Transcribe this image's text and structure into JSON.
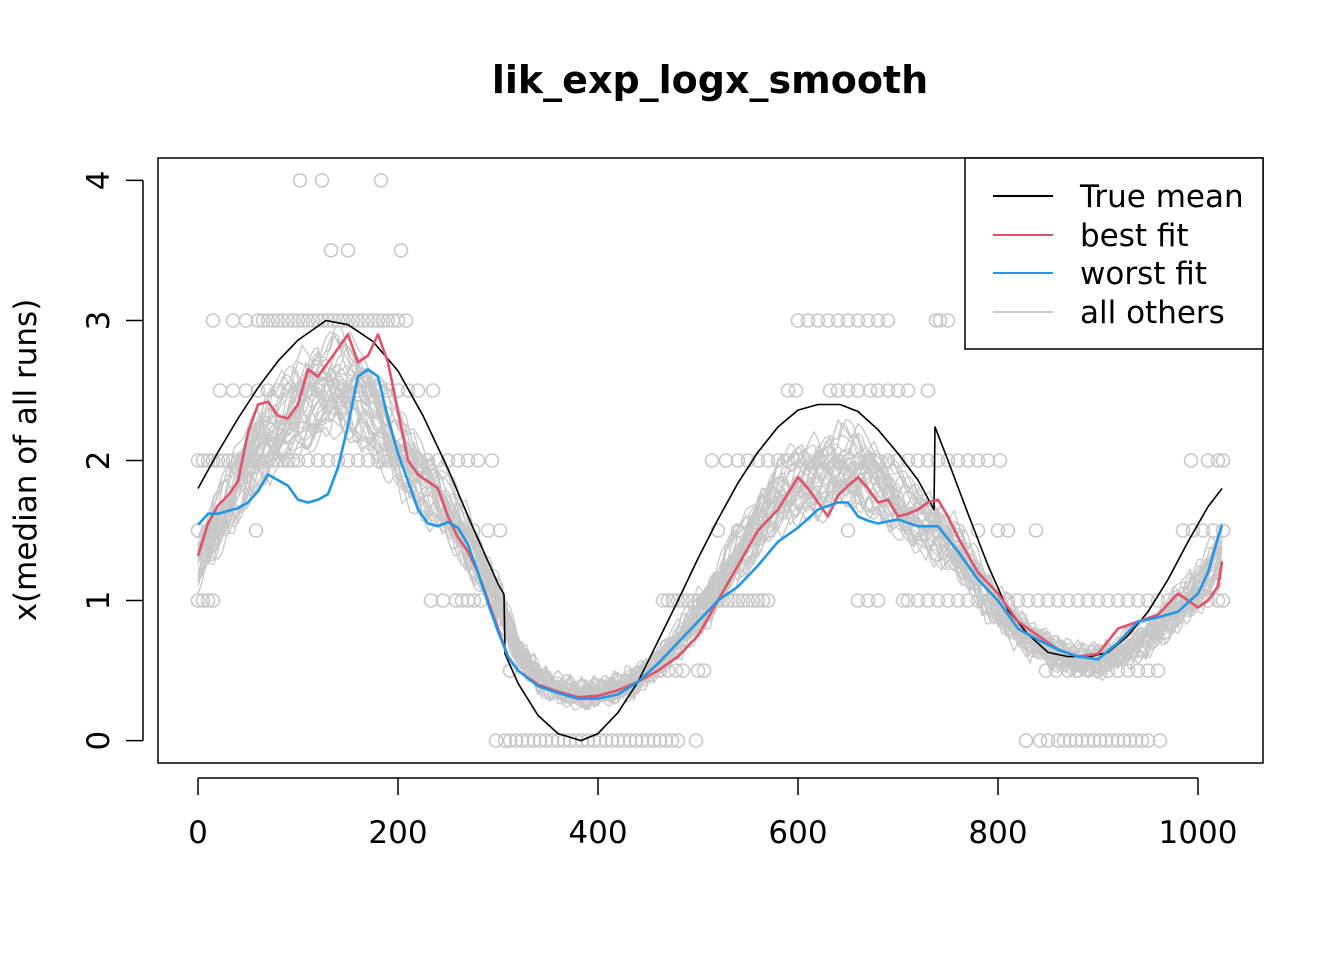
{
  "chart_data": {
    "type": "line",
    "title": "lik_exp_logx_smooth",
    "xlabel": "",
    "ylabel": "x(median of all runs)",
    "xlim": [
      -40,
      1065
    ],
    "ylim": [
      -0.16,
      4.16
    ],
    "x_ticks": [
      "0",
      "200",
      "400",
      "600",
      "800",
      "1000"
    ],
    "y_ticks": [
      "0",
      "1",
      "2",
      "3",
      "4"
    ],
    "legend_position": "top-right",
    "colors": {
      "true_mean": "#000000",
      "best_fit": "#DF536B",
      "worst_fit": "#2297E6",
      "others": "#C8C8C8",
      "points": "#C8C8C8"
    },
    "legend": [
      {
        "label": "True mean",
        "color": "#000000"
      },
      {
        "label": "best fit",
        "color": "#DF536B"
      },
      {
        "label": "worst fit",
        "color": "#2297E6"
      },
      {
        "label": "all others",
        "color": "#C8C8C8"
      }
    ],
    "series": [
      {
        "name": "True mean",
        "color": "#000000",
        "x": [
          0,
          20,
          40,
          60,
          80,
          100,
          128,
          150,
          175,
          200,
          225,
          250,
          275,
          300,
          306,
          307,
          320,
          340,
          360,
          383,
          400,
          420,
          440,
          460,
          480,
          500,
          520,
          540,
          560,
          580,
          600,
          620,
          642,
          660,
          680,
          700,
          720,
          736,
          737,
          750,
          770,
          790,
          810,
          830,
          850,
          870,
          892,
          910,
          930,
          950,
          970,
          990,
          1010,
          1024
        ],
        "y": [
          1.8,
          2.06,
          2.3,
          2.52,
          2.71,
          2.86,
          3.0,
          2.97,
          2.85,
          2.64,
          2.32,
          1.94,
          1.52,
          1.12,
          1.04,
          0.62,
          0.41,
          0.18,
          0.05,
          0.0,
          0.05,
          0.2,
          0.42,
          0.71,
          1.0,
          1.3,
          1.58,
          1.84,
          2.06,
          2.24,
          2.36,
          2.4,
          2.4,
          2.35,
          2.22,
          2.05,
          1.86,
          1.65,
          2.24,
          2.0,
          1.62,
          1.25,
          0.93,
          0.76,
          0.63,
          0.6,
          0.6,
          0.63,
          0.75,
          0.92,
          1.15,
          1.42,
          1.67,
          1.8
        ]
      },
      {
        "name": "best fit",
        "color": "#DF536B",
        "x": [
          0,
          10,
          20,
          30,
          40,
          50,
          60,
          70,
          80,
          90,
          100,
          110,
          120,
          130,
          140,
          150,
          160,
          170,
          180,
          190,
          200,
          210,
          220,
          230,
          240,
          250,
          260,
          270,
          280,
          290,
          300,
          310,
          320,
          340,
          360,
          380,
          400,
          420,
          440,
          460,
          480,
          500,
          520,
          540,
          560,
          580,
          600,
          610,
          620,
          630,
          640,
          650,
          660,
          670,
          680,
          690,
          700,
          710,
          720,
          730,
          740,
          750,
          760,
          780,
          800,
          820,
          840,
          860,
          880,
          900,
          920,
          940,
          960,
          980,
          1000,
          1010,
          1020,
          1024
        ],
        "y": [
          1.32,
          1.55,
          1.68,
          1.75,
          1.85,
          2.2,
          2.4,
          2.42,
          2.32,
          2.3,
          2.4,
          2.65,
          2.6,
          2.7,
          2.8,
          2.9,
          2.7,
          2.75,
          2.9,
          2.7,
          2.35,
          2.0,
          1.9,
          1.85,
          1.8,
          1.6,
          1.45,
          1.35,
          1.2,
          1.0,
          0.8,
          0.6,
          0.5,
          0.4,
          0.35,
          0.31,
          0.32,
          0.36,
          0.42,
          0.5,
          0.6,
          0.75,
          1.0,
          1.25,
          1.5,
          1.65,
          1.88,
          1.8,
          1.7,
          1.6,
          1.75,
          1.82,
          1.88,
          1.8,
          1.7,
          1.72,
          1.6,
          1.62,
          1.65,
          1.7,
          1.72,
          1.6,
          1.45,
          1.2,
          1.05,
          0.85,
          0.75,
          0.65,
          0.6,
          0.62,
          0.8,
          0.85,
          0.9,
          1.05,
          0.95,
          1.0,
          1.1,
          1.28
        ]
      },
      {
        "name": "worst fit",
        "color": "#2297E6",
        "x": [
          0,
          10,
          20,
          40,
          50,
          60,
          70,
          80,
          90,
          100,
          110,
          120,
          130,
          140,
          150,
          160,
          170,
          180,
          190,
          200,
          210,
          220,
          230,
          240,
          250,
          260,
          270,
          280,
          290,
          300,
          310,
          320,
          340,
          360,
          380,
          400,
          420,
          440,
          460,
          480,
          500,
          520,
          540,
          560,
          580,
          600,
          620,
          640,
          650,
          660,
          670,
          680,
          700,
          720,
          740,
          760,
          780,
          800,
          820,
          840,
          860,
          880,
          900,
          920,
          940,
          960,
          980,
          1000,
          1010,
          1020,
          1024
        ],
        "y": [
          1.54,
          1.62,
          1.62,
          1.66,
          1.7,
          1.78,
          1.9,
          1.86,
          1.82,
          1.72,
          1.7,
          1.72,
          1.76,
          1.95,
          2.25,
          2.6,
          2.65,
          2.6,
          2.3,
          2.05,
          1.85,
          1.65,
          1.55,
          1.53,
          1.56,
          1.52,
          1.4,
          1.2,
          0.98,
          0.78,
          0.6,
          0.5,
          0.39,
          0.34,
          0.3,
          0.3,
          0.33,
          0.42,
          0.55,
          0.7,
          0.85,
          1.0,
          1.1,
          1.25,
          1.42,
          1.52,
          1.65,
          1.7,
          1.7,
          1.6,
          1.57,
          1.55,
          1.58,
          1.53,
          1.53,
          1.35,
          1.15,
          1.0,
          0.8,
          0.72,
          0.65,
          0.6,
          0.58,
          0.7,
          0.85,
          0.88,
          0.92,
          1.05,
          1.2,
          1.45,
          1.54
        ]
      }
    ],
    "point_rows": [
      {
        "y": 4.0,
        "x": [
          102,
          124,
          183
        ]
      },
      {
        "y": 3.5,
        "x": [
          133,
          150,
          203
        ]
      },
      {
        "y": 3.0,
        "x": [
          15,
          35,
          48,
          60,
          65,
          70,
          75,
          80,
          85,
          90,
          95,
          100,
          105,
          110,
          115,
          120,
          125,
          130,
          135,
          140,
          145,
          150,
          155,
          160,
          165,
          170,
          175,
          180,
          185,
          190,
          195,
          200,
          208,
          600,
          610,
          620,
          630,
          640,
          650,
          660,
          670,
          680,
          690,
          738,
          742,
          750
        ]
      },
      {
        "y": 2.5,
        "x": [
          22,
          35,
          48,
          60,
          70,
          80,
          90,
          100,
          110,
          120,
          130,
          140,
          150,
          160,
          170,
          180,
          190,
          200,
          210,
          220,
          235,
          590,
          598,
          632,
          640,
          650,
          660,
          672,
          680,
          690,
          700,
          710,
          730
        ]
      },
      {
        "y": 2.0,
        "x": [
          0,
          5,
          10,
          15,
          20,
          25,
          30,
          35,
          40,
          45,
          50,
          55,
          60,
          65,
          70,
          75,
          80,
          85,
          90,
          95,
          100,
          110,
          120,
          130,
          140,
          150,
          160,
          170,
          180,
          190,
          200,
          210,
          220,
          230,
          240,
          250,
          260,
          270,
          280,
          294,
          514,
          528,
          540,
          550,
          560,
          570,
          580,
          590,
          600,
          610,
          620,
          630,
          640,
          650,
          660,
          670,
          680,
          690,
          700,
          710,
          720,
          730,
          740,
          750,
          760,
          770,
          780,
          790,
          802,
          993,
          1010,
          1020,
          1025
        ]
      },
      {
        "y": 1.5,
        "x": [
          0,
          10,
          58,
          258,
          275,
          290,
          302,
          520,
          540,
          650,
          720,
          740,
          760,
          780,
          800,
          810,
          838,
          985,
          995,
          1005,
          1015,
          1025
        ]
      },
      {
        "y": 1.0,
        "x": [
          0,
          5,
          10,
          15,
          233,
          245,
          258,
          264,
          270,
          276,
          283,
          465,
          470,
          475,
          480,
          485,
          490,
          495,
          500,
          505,
          510,
          515,
          520,
          525,
          530,
          535,
          540,
          545,
          550,
          555,
          560,
          565,
          570,
          660,
          670,
          680,
          705,
          710,
          720,
          730,
          740,
          750,
          760,
          770,
          780,
          790,
          800,
          810,
          820,
          830,
          840,
          850,
          860,
          870,
          880,
          890,
          900,
          910,
          920,
          930,
          940,
          950,
          960,
          970,
          980,
          990,
          1000,
          1010,
          1020,
          1025
        ]
      },
      {
        "y": 0.5,
        "x": [
          312,
          462,
          470,
          478,
          485,
          500,
          506,
          870,
          880,
          890,
          900,
          910,
          920,
          930,
          940,
          950,
          960,
          848,
          858
        ]
      },
      {
        "y": 0.0,
        "x": [
          298,
          307,
          312,
          318,
          324,
          330,
          336,
          342,
          348,
          354,
          360,
          366,
          372,
          378,
          384,
          390,
          396,
          402,
          408,
          414,
          420,
          426,
          432,
          438,
          444,
          450,
          456,
          462,
          468,
          474,
          480,
          498,
          828,
          842,
          850,
          860,
          866,
          872,
          878,
          884,
          890,
          896,
          902,
          908,
          914,
          920,
          926,
          932,
          938,
          944,
          950,
          962
        ]
      }
    ],
    "others_band": {
      "x": [
        0,
        20,
        40,
        60,
        80,
        100,
        120,
        140,
        160,
        180,
        200,
        220,
        240,
        260,
        280,
        300,
        320,
        340,
        360,
        380,
        400,
        420,
        440,
        460,
        480,
        500,
        520,
        540,
        560,
        580,
        600,
        620,
        640,
        660,
        680,
        700,
        720,
        740,
        760,
        780,
        800,
        820,
        840,
        860,
        880,
        900,
        920,
        940,
        960,
        980,
        1000,
        1024
      ],
      "mid": [
        1.3,
        1.55,
        1.85,
        2.1,
        2.25,
        2.4,
        2.5,
        2.55,
        2.5,
        2.3,
        2.1,
        1.9,
        1.75,
        1.55,
        1.3,
        1.0,
        0.65,
        0.45,
        0.37,
        0.34,
        0.35,
        0.38,
        0.45,
        0.55,
        0.72,
        0.9,
        1.1,
        1.35,
        1.55,
        1.75,
        1.85,
        1.9,
        1.95,
        1.95,
        1.85,
        1.7,
        1.6,
        1.5,
        1.35,
        1.15,
        0.95,
        0.8,
        0.7,
        0.62,
        0.58,
        0.58,
        0.62,
        0.7,
        0.8,
        0.95,
        1.1,
        1.35
      ],
      "runs": 40
    }
  }
}
